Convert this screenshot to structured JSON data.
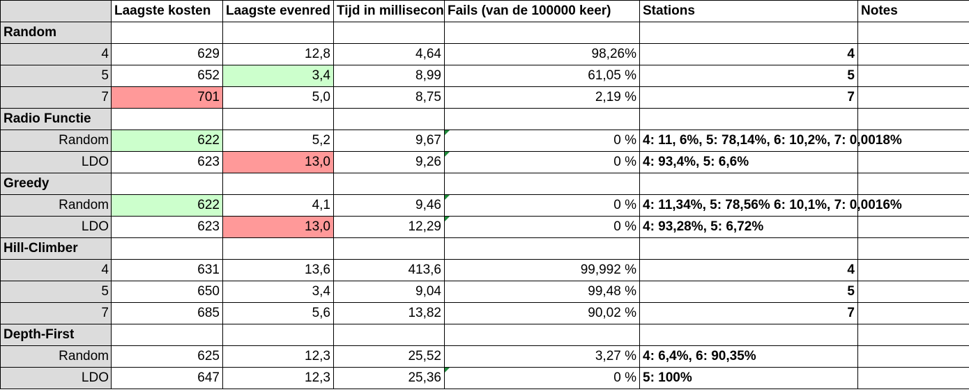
{
  "headers": [
    "",
    "Laagste kosten",
    "Laagste evenred",
    "Tijd in millisecon",
    "Fails (van de 100000 keer)",
    "Stations",
    "Notes"
  ],
  "groups": [
    {
      "name": "Random",
      "rows": [
        {
          "label": "4",
          "kosten": "629",
          "evenred": "12,8",
          "tijd": "4,64",
          "fails": "98,26%",
          "stations": "4",
          "stations_align": "right",
          "marker": false
        },
        {
          "label": "5",
          "kosten": "652",
          "evenred": "3,4",
          "tijd": "8,99",
          "fails": "61,05 %",
          "stations": "5",
          "stations_align": "right",
          "marker": false,
          "evenred_color": "green"
        },
        {
          "label": "7",
          "kosten": "701",
          "evenred": "5,0",
          "tijd": "8,75",
          "fails": "2,19 %",
          "stations": "7",
          "stations_align": "right",
          "marker": false,
          "kosten_color": "red"
        }
      ]
    },
    {
      "name": "Radio Functie",
      "rows": [
        {
          "label": "Random",
          "kosten": "622",
          "evenred": "5,2",
          "tijd": "9,67",
          "fails": "0 %",
          "stations": "4: 11, 6%, 5: 78,14%, 6: 10,2%, 7: 0,0018%",
          "stations_align": "left",
          "marker": true,
          "kosten_color": "green"
        },
        {
          "label": "LDO",
          "kosten": "623",
          "evenred": "13,0",
          "tijd": "9,26",
          "fails": "0 %",
          "stations": "4: 93,4%, 5: 6,6%",
          "stations_align": "left",
          "marker": true,
          "evenred_color": "red"
        }
      ]
    },
    {
      "name": "Greedy",
      "rows": [
        {
          "label": "Random",
          "kosten": "622",
          "evenred": "4,1",
          "tijd": "9,46",
          "fails": "0 %",
          "stations": "4: 11,34%, 5: 78,56% 6: 10,1%, 7: 0,0016%",
          "stations_align": "left",
          "marker": true,
          "kosten_color": "green"
        },
        {
          "label": "LDO",
          "kosten": "623",
          "evenred": "13,0",
          "tijd": "12,29",
          "fails": "0 %",
          "stations": "4: 93,28%, 5: 6,72%",
          "stations_align": "left",
          "marker": true,
          "evenred_color": "red"
        }
      ]
    },
    {
      "name": "Hill-Climber",
      "rows": [
        {
          "label": "4",
          "kosten": "631",
          "evenred": "13,6",
          "tijd": "413,6",
          "fails": "99,992 %",
          "stations": "4",
          "stations_align": "right",
          "marker": false
        },
        {
          "label": "5",
          "kosten": "650",
          "evenred": "3,4",
          "tijd": "9,04",
          "fails": "99,48 %",
          "stations": "5",
          "stations_align": "right",
          "marker": false
        },
        {
          "label": "7",
          "kosten": "685",
          "evenred": "5,6",
          "tijd": "13,82",
          "fails": "90,02 %",
          "stations": "7",
          "stations_align": "right",
          "marker": false
        }
      ]
    },
    {
      "name": "Depth-First",
      "rows": [
        {
          "label": "Random",
          "kosten": "625",
          "evenred": "12,3",
          "tijd": "25,52",
          "fails": "3,27 %",
          "stations": "4: 6,4%, 6: 90,35%",
          "stations_align": "left",
          "marker": false
        },
        {
          "label": "LDO",
          "kosten": "647",
          "evenred": "12,3",
          "tijd": "25,36",
          "fails": "0 %",
          "stations": "5: 100%",
          "stations_align": "left",
          "marker": true
        }
      ]
    }
  ],
  "colors": {
    "green": "#ccffcc",
    "red": "#ff9999",
    "marker": "#1f8a3a",
    "row_header_bg": "#dcdcdc"
  }
}
